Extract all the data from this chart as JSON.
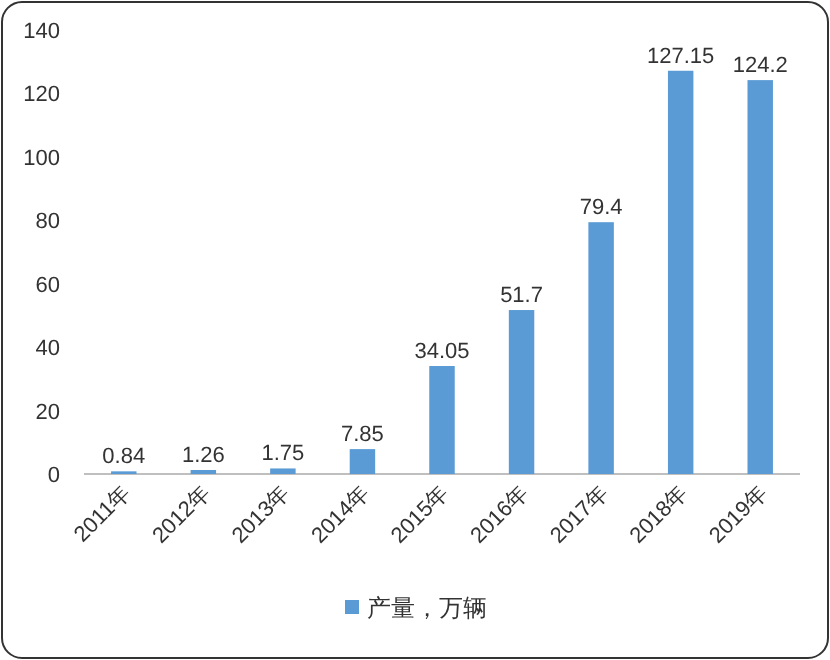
{
  "chart_data": {
    "type": "bar",
    "categories": [
      "2011年",
      "2012年",
      "2013年",
      "2014年",
      "2015年",
      "2016年",
      "2017年",
      "2018年",
      "2019年"
    ],
    "series": [
      {
        "name": "产量，万辆",
        "color": "#5b9bd5",
        "values": [
          0.84,
          1.26,
          1.75,
          7.85,
          34.05,
          51.7,
          79.4,
          127.15,
          124.2
        ]
      }
    ],
    "ylim": [
      0,
      140
    ],
    "yticks": [
      0,
      20,
      40,
      60,
      80,
      100,
      120,
      140
    ],
    "data_labels": true,
    "legend": "bottom",
    "grid": false
  }
}
